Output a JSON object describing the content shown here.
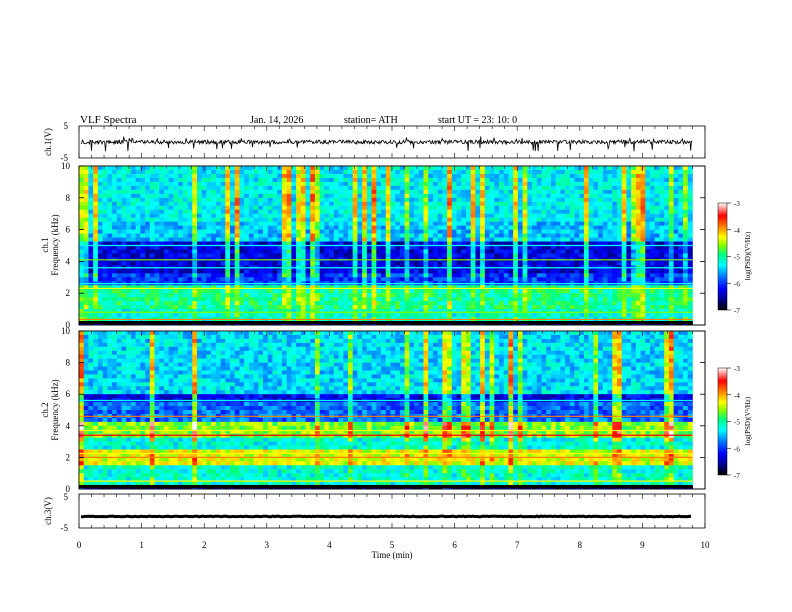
{
  "header": {
    "title": "VLF  Spectra",
    "date": "Jan.  14,  2026",
    "station": "station= ATH",
    "start": "start  UT  =    23: 10: 0"
  },
  "chart_data": [
    {
      "type": "line",
      "id": "ch1-waveform",
      "ylabel": "ch.1(V)",
      "ylim": [
        -5,
        5
      ],
      "ytick_labels": [
        "5",
        "-5"
      ],
      "xlim": [
        0,
        10
      ],
      "series": [
        {
          "baseline": 0,
          "amplitude_approx": 1,
          "occasional_spikes_to": -2
        }
      ]
    },
    {
      "type": "heatmap",
      "id": "ch1-spectrogram",
      "ylabel": "ch.1\nFrequency  (kHz)",
      "ylim": [
        0,
        10
      ],
      "yticks": [
        0,
        2,
        4,
        6,
        8,
        10
      ],
      "xlim": [
        0,
        9.8
      ],
      "colorbar": {
        "label": "log(PSD)(V²/Hz)",
        "range": [
          -7,
          -3
        ],
        "ticks": [
          "-3",
          "-4",
          "-5",
          "-6",
          "-7"
        ]
      }
    },
    {
      "type": "heatmap",
      "id": "ch2-spectrogram",
      "ylabel": "ch.2\nFrequency  (kHz)",
      "ylim": [
        0,
        10
      ],
      "yticks": [
        0,
        2,
        4,
        6,
        8,
        10
      ],
      "xlim": [
        0,
        9.8
      ],
      "colorbar": {
        "label": "log(PSD)(V²/Hz)",
        "range": [
          -7,
          -3
        ],
        "ticks": [
          "-3",
          "-4",
          "-5",
          "-6",
          "-7"
        ]
      }
    },
    {
      "type": "line",
      "id": "ch3-waveform",
      "ylabel": "ch.3(V)",
      "ylim": [
        -5,
        5
      ],
      "ytick_labels": [
        "5",
        "-5"
      ],
      "xlim": [
        0,
        10
      ],
      "series": [
        {
          "baseline": -1.6,
          "amplitude_approx": 0.2
        }
      ]
    }
  ],
  "x_axis": {
    "label": "Time  (min)",
    "ticks": [
      0,
      1,
      2,
      3,
      4,
      5,
      6,
      7,
      8,
      9,
      10
    ]
  },
  "colors": {
    "colormap": [
      "#000000",
      "#000090",
      "#0000ff",
      "#0080ff",
      "#00ffff",
      "#00ff80",
      "#80ff00",
      "#ffff00",
      "#ff8000",
      "#ff0000",
      "#ffffff"
    ]
  }
}
